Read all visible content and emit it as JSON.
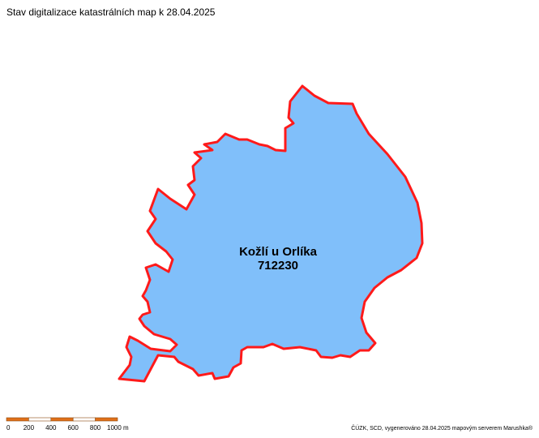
{
  "header": {
    "title": "Stav digitalizace katastrálních map k 28.04.2025"
  },
  "region": {
    "name": "Kožlí u Orlíka",
    "code": "712230"
  },
  "scale_bar": {
    "labels": [
      "0",
      "200",
      "400",
      "600",
      "800",
      "1000 m"
    ]
  },
  "footer": {
    "attribution": "ČÚZK, SCD, vygenerováno 28.04.2025 mapovým serverem Marushka®"
  }
}
